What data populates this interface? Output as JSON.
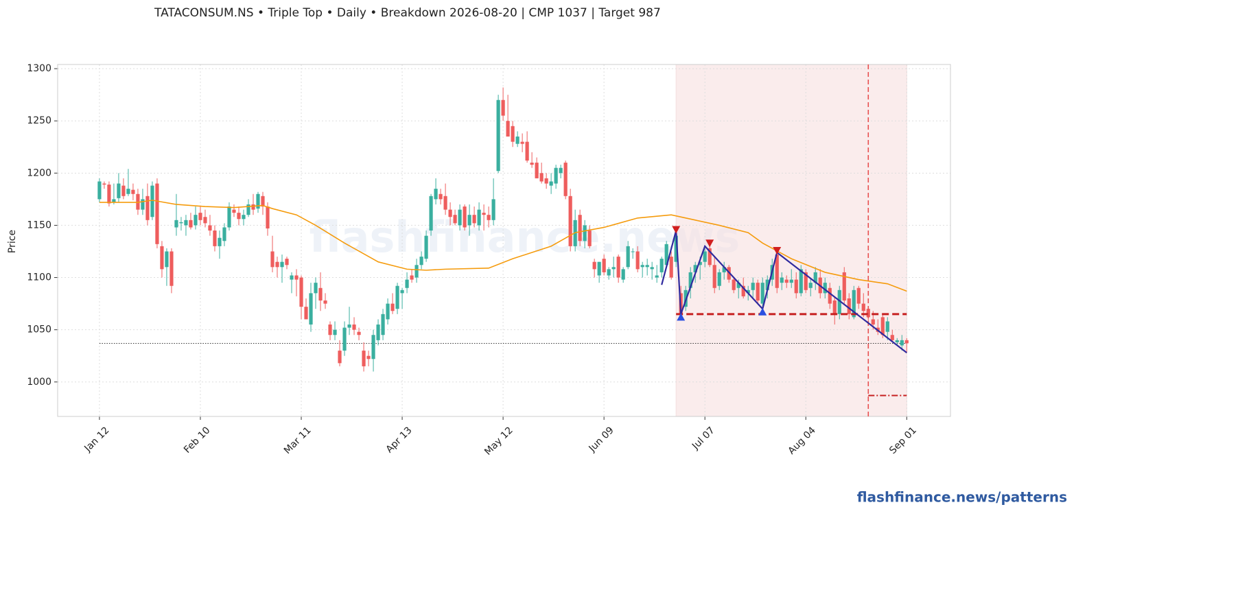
{
  "chart_data": {
    "type": "candlestick",
    "title": "TATACONSUM.NS  •  Triple Top  •  Daily  •  Breakdown 2026-08-20  |  CMP 1037  |  Target 987",
    "ylabel": "Price",
    "watermark": "flashfinance.news",
    "footer": "flashfinance.news/patterns",
    "up_color": "#3aaf9f",
    "down_color": "#ee5d5d",
    "ma_color": "#f59b0c",
    "pattern_color": "#2f2a9e",
    "xlim": [
      -8.7,
      177.1
    ],
    "ylim": [
      967,
      1304
    ],
    "yticks": [
      1000,
      1050,
      1100,
      1150,
      1200,
      1250,
      1300
    ],
    "xticks": [
      {
        "value": 0,
        "label": "Jan 12"
      },
      {
        "value": 21,
        "label": "Feb 10"
      },
      {
        "value": 42,
        "label": "Mar 11"
      },
      {
        "value": 63,
        "label": "Apr 13"
      },
      {
        "value": 84,
        "label": "May 12"
      },
      {
        "value": 105,
        "label": "Jun 09"
      },
      {
        "value": 126,
        "label": "Jul 07"
      },
      {
        "value": 147,
        "label": "Aug 04"
      },
      {
        "value": 168,
        "label": "Sep 01"
      }
    ],
    "grid": true,
    "candles": [
      [
        1175,
        1195,
        1172,
        1192
      ],
      [
        1190,
        1192,
        1185,
        1189
      ],
      [
        1189,
        1192,
        1168,
        1171
      ],
      [
        1172,
        1190,
        1170,
        1175
      ],
      [
        1176,
        1200,
        1172,
        1190
      ],
      [
        1188,
        1195,
        1175,
        1178
      ],
      [
        1180,
        1204,
        1178,
        1185
      ],
      [
        1184,
        1190,
        1174,
        1180
      ],
      [
        1180,
        1185,
        1160,
        1165
      ],
      [
        1165,
        1185,
        1160,
        1175
      ],
      [
        1178,
        1190,
        1150,
        1155
      ],
      [
        1158,
        1192,
        1155,
        1188
      ],
      [
        1190,
        1195,
        1128,
        1132
      ],
      [
        1130,
        1135,
        1100,
        1108
      ],
      [
        1110,
        1128,
        1092,
        1125
      ],
      [
        1125,
        1128,
        1085,
        1092
      ],
      [
        1148,
        1180,
        1140,
        1155
      ],
      [
        1152,
        1158,
        1145,
        1153
      ],
      [
        1150,
        1160,
        1140,
        1155
      ],
      [
        1155,
        1162,
        1146,
        1148
      ],
      [
        1150,
        1168,
        1146,
        1160
      ],
      [
        1162,
        1168,
        1150,
        1155
      ],
      [
        1158,
        1165,
        1148,
        1152
      ],
      [
        1150,
        1160,
        1140,
        1145
      ],
      [
        1145,
        1150,
        1125,
        1130
      ],
      [
        1130,
        1145,
        1118,
        1138
      ],
      [
        1135,
        1152,
        1130,
        1148
      ],
      [
        1148,
        1172,
        1145,
        1168
      ],
      [
        1165,
        1170,
        1158,
        1162
      ],
      [
        1162,
        1168,
        1150,
        1156
      ],
      [
        1156,
        1165,
        1150,
        1160
      ],
      [
        1160,
        1175,
        1158,
        1170
      ],
      [
        1170,
        1180,
        1160,
        1165
      ],
      [
        1166,
        1182,
        1162,
        1180
      ],
      [
        1178,
        1182,
        1160,
        1168
      ],
      [
        1168,
        1172,
        1140,
        1147
      ],
      [
        1125,
        1140,
        1105,
        1110
      ],
      [
        1115,
        1120,
        1100,
        1110
      ],
      [
        1110,
        1122,
        1095,
        1115
      ],
      [
        1118,
        1120,
        1108,
        1112
      ],
      [
        1098,
        1105,
        1085,
        1102
      ],
      [
        1102,
        1108,
        1082,
        1098
      ],
      [
        1100,
        1102,
        1060,
        1072
      ],
      [
        1072,
        1080,
        1060,
        1060
      ],
      [
        1055,
        1095,
        1048,
        1085
      ],
      [
        1085,
        1100,
        1070,
        1095
      ],
      [
        1090,
        1105,
        1068,
        1078
      ],
      [
        1078,
        1085,
        1070,
        1075
      ],
      [
        1055,
        1058,
        1040,
        1045
      ],
      [
        1045,
        1058,
        1040,
        1050
      ],
      [
        1030,
        1040,
        1015,
        1018
      ],
      [
        1030,
        1058,
        1025,
        1052
      ],
      [
        1052,
        1072,
        1045,
        1055
      ],
      [
        1055,
        1062,
        1045,
        1050
      ],
      [
        1048,
        1052,
        1040,
        1045
      ],
      [
        1030,
        1038,
        1010,
        1015
      ],
      [
        1025,
        1030,
        1015,
        1022
      ],
      [
        1022,
        1050,
        1010,
        1045
      ],
      [
        1040,
        1060,
        1035,
        1055
      ],
      [
        1045,
        1070,
        1040,
        1065
      ],
      [
        1060,
        1080,
        1055,
        1075
      ],
      [
        1075,
        1085,
        1065,
        1068
      ],
      [
        1070,
        1095,
        1065,
        1092
      ],
      [
        1085,
        1090,
        1070,
        1088
      ],
      [
        1090,
        1105,
        1085,
        1098
      ],
      [
        1102,
        1108,
        1095,
        1098
      ],
      [
        1100,
        1118,
        1095,
        1112
      ],
      [
        1112,
        1125,
        1108,
        1120
      ],
      [
        1118,
        1145,
        1115,
        1140
      ],
      [
        1145,
        1180,
        1140,
        1178
      ],
      [
        1175,
        1195,
        1170,
        1185
      ],
      [
        1180,
        1185,
        1170,
        1175
      ],
      [
        1178,
        1190,
        1160,
        1165
      ],
      [
        1165,
        1172,
        1150,
        1158
      ],
      [
        1160,
        1165,
        1150,
        1152
      ],
      [
        1150,
        1170,
        1145,
        1165
      ],
      [
        1168,
        1170,
        1145,
        1148
      ],
      [
        1150,
        1170,
        1140,
        1160
      ],
      [
        1160,
        1168,
        1148,
        1152
      ],
      [
        1150,
        1172,
        1145,
        1165
      ],
      [
        1162,
        1170,
        1145,
        1160
      ],
      [
        1160,
        1168,
        1148,
        1155
      ],
      [
        1155,
        1195,
        1150,
        1175
      ],
      [
        1202,
        1275,
        1200,
        1270
      ],
      [
        1270,
        1282,
        1250,
        1255
      ],
      [
        1250,
        1275,
        1235,
        1235
      ],
      [
        1245,
        1250,
        1225,
        1230
      ],
      [
        1228,
        1240,
        1225,
        1235
      ],
      [
        1230,
        1238,
        1220,
        1228
      ],
      [
        1230,
        1240,
        1210,
        1212
      ],
      [
        1210,
        1220,
        1205,
        1208
      ],
      [
        1210,
        1215,
        1195,
        1195
      ],
      [
        1200,
        1210,
        1190,
        1192
      ],
      [
        1195,
        1200,
        1185,
        1190
      ],
      [
        1188,
        1200,
        1180,
        1192
      ],
      [
        1190,
        1208,
        1185,
        1205
      ],
      [
        1200,
        1208,
        1195,
        1205
      ],
      [
        1210,
        1212,
        1175,
        1178
      ],
      [
        1178,
        1185,
        1125,
        1130
      ],
      [
        1130,
        1165,
        1125,
        1155
      ],
      [
        1160,
        1165,
        1130,
        1135
      ],
      [
        1135,
        1155,
        1128,
        1150
      ],
      [
        1145,
        1150,
        1128,
        1130
      ],
      [
        1115,
        1118,
        1100,
        1108
      ],
      [
        1102,
        1115,
        1095,
        1115
      ],
      [
        1118,
        1122,
        1102,
        1105
      ],
      [
        1102,
        1110,
        1098,
        1108
      ],
      [
        1108,
        1120,
        1100,
        1110
      ],
      [
        1120,
        1122,
        1095,
        1100
      ],
      [
        1098,
        1110,
        1095,
        1108
      ],
      [
        1110,
        1135,
        1108,
        1130
      ],
      [
        1125,
        1128,
        1118,
        1125
      ],
      [
        1125,
        1130,
        1105,
        1108
      ],
      [
        1110,
        1115,
        1100,
        1112
      ],
      [
        1110,
        1118,
        1102,
        1112
      ],
      [
        1108,
        1115,
        1098,
        1110
      ],
      [
        1100,
        1112,
        1095,
        1102
      ],
      [
        1105,
        1120,
        1100,
        1118
      ],
      [
        1112,
        1135,
        1110,
        1132
      ],
      [
        1120,
        1125,
        1098,
        1100
      ],
      [
        1115,
        1146,
        1110,
        1140
      ],
      [
        1085,
        1092,
        1060,
        1065
      ],
      [
        1072,
        1092,
        1068,
        1088
      ],
      [
        1090,
        1110,
        1080,
        1105
      ],
      [
        1105,
        1115,
        1095,
        1112
      ],
      [
        1112,
        1120,
        1098,
        1115
      ],
      [
        1115,
        1128,
        1110,
        1125
      ],
      [
        1128,
        1133,
        1110,
        1112
      ],
      [
        1112,
        1120,
        1085,
        1090
      ],
      [
        1092,
        1108,
        1088,
        1105
      ],
      [
        1105,
        1115,
        1098,
        1110
      ],
      [
        1110,
        1112,
        1095,
        1098
      ],
      [
        1098,
        1100,
        1085,
        1088
      ],
      [
        1090,
        1098,
        1080,
        1095
      ],
      [
        1092,
        1100,
        1080,
        1082
      ],
      [
        1085,
        1092,
        1078,
        1088
      ],
      [
        1088,
        1100,
        1080,
        1095
      ],
      [
        1095,
        1098,
        1075,
        1078
      ],
      [
        1075,
        1100,
        1068,
        1095
      ],
      [
        1088,
        1102,
        1080,
        1098
      ],
      [
        1098,
        1118,
        1092,
        1112
      ],
      [
        1122,
        1126,
        1085,
        1090
      ],
      [
        1095,
        1105,
        1088,
        1100
      ],
      [
        1098,
        1102,
        1090,
        1095
      ],
      [
        1095,
        1108,
        1090,
        1098
      ],
      [
        1098,
        1105,
        1080,
        1085
      ],
      [
        1085,
        1112,
        1082,
        1108
      ],
      [
        1105,
        1108,
        1085,
        1088
      ],
      [
        1090,
        1100,
        1082,
        1095
      ],
      [
        1095,
        1110,
        1088,
        1105
      ],
      [
        1100,
        1108,
        1080,
        1085
      ],
      [
        1085,
        1100,
        1080,
        1095
      ],
      [
        1090,
        1095,
        1070,
        1075
      ],
      [
        1078,
        1082,
        1055,
        1065
      ],
      [
        1065,
        1092,
        1060,
        1088
      ],
      [
        1105,
        1110,
        1075,
        1078
      ],
      [
        1080,
        1085,
        1060,
        1065
      ],
      [
        1062,
        1092,
        1060,
        1088
      ],
      [
        1090,
        1092,
        1070,
        1075
      ],
      [
        1075,
        1085,
        1062,
        1068
      ],
      [
        1070,
        1072,
        1058,
        1062
      ],
      [
        1060,
        1068,
        1050,
        1055
      ],
      [
        1052,
        1060,
        1045,
        1048
      ],
      [
        1062,
        1065,
        1042,
        1045
      ],
      [
        1048,
        1062,
        1040,
        1058
      ],
      [
        1045,
        1050,
        1038,
        1040
      ],
      [
        1038,
        1042,
        1035,
        1040
      ],
      [
        1035,
        1045,
        1030,
        1040
      ],
      [
        1040,
        1042,
        1028,
        1037
      ]
    ],
    "ma": {
      "x": [
        0,
        8,
        11,
        16,
        22,
        28,
        34,
        36,
        41,
        45,
        51,
        58,
        64,
        68,
        72,
        81,
        86,
        94,
        99,
        105,
        112,
        119,
        124,
        129,
        135,
        138,
        144,
        151,
        158,
        164,
        168
      ],
      "values": [
        1172,
        1172,
        1174,
        1170,
        1168,
        1167,
        1169,
        1166,
        1160,
        1150,
        1133,
        1115,
        1108,
        1107,
        1108,
        1109,
        1118,
        1130,
        1143,
        1148,
        1157,
        1160,
        1155,
        1150,
        1143,
        1133,
        1118,
        1105,
        1098,
        1094,
        1087
      ]
    },
    "pattern_line": {
      "x": [
        117,
        120,
        121,
        126,
        138,
        141,
        168
      ],
      "values": [
        1093,
        1145,
        1065,
        1130,
        1070,
        1124,
        1028
      ]
    },
    "peaks": {
      "x": [
        120,
        127,
        141
      ],
      "values": [
        1146,
        1133,
        1126
      ]
    },
    "troughs": {
      "x": [
        121,
        138
      ],
      "values": [
        1062,
        1067
      ]
    },
    "pattern_zone": [
      120,
      168
    ],
    "breakdown_x": 160,
    "neckline": {
      "value": 1065,
      "x": [
        120,
        168
      ]
    },
    "target": {
      "value": 987,
      "x": [
        160,
        168
      ]
    },
    "cmp": {
      "value": 1037,
      "x": [
        0,
        168
      ]
    }
  }
}
